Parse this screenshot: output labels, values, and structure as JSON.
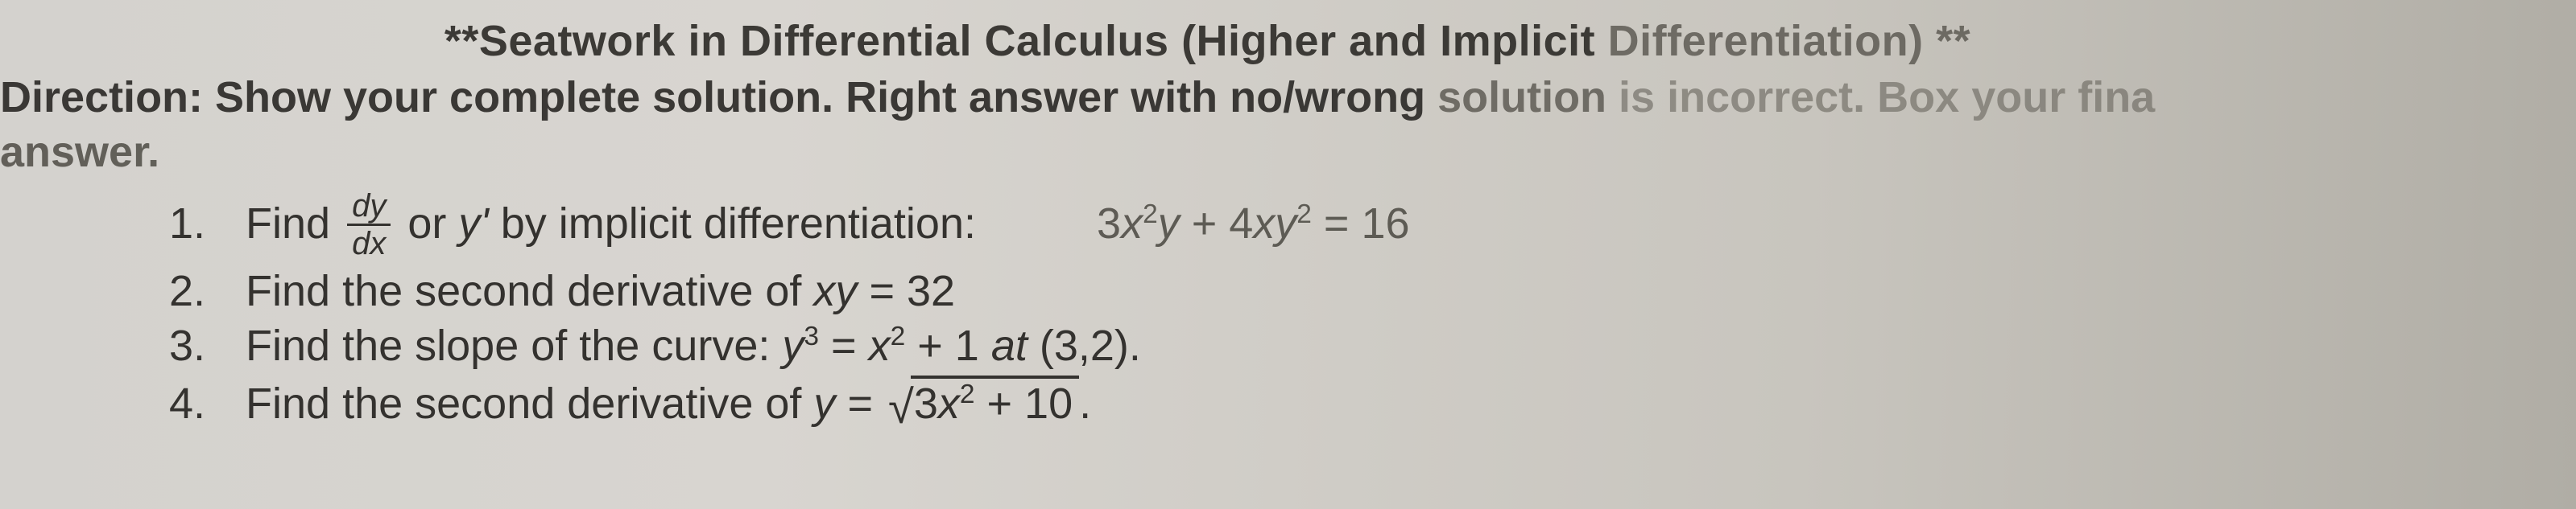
{
  "title": {
    "stars_left": "**",
    "main": "Seatwork in Differential Calculus (Higher and Implicit ",
    "faded_word": "Differentiation) ",
    "stars_right": "**"
  },
  "direction": {
    "label": "Direction:",
    "body_strong": "  Show your complete solution. Right answer with no/wrong ",
    "body_fade1": "solution ",
    "body_fade2": "is incorrect. Box your fina"
  },
  "answer_label": "answer.",
  "problems": {
    "p1": {
      "num": "1.",
      "lead": "Find ",
      "frac_top": "dy",
      "frac_bot": "dx",
      "mid": " or ",
      "yprime": "y'",
      "rest": " by implicit differentiation:",
      "eq_lhs_a": "3",
      "eq_lhs_b": "x",
      "eq_lhs_b_sup": "2",
      "eq_lhs_c": "y",
      "eq_lhs_d": " + 4",
      "eq_lhs_e": "xy",
      "eq_lhs_e_sup": "2",
      "eq_eq": " = 16"
    },
    "p2": {
      "num": "2.",
      "text": "Find the second derivative of ",
      "var": "xy",
      "eq": " = ",
      "val": " 32"
    },
    "p3": {
      "num": "3.",
      "text": "Find the slope of the curve: ",
      "y": "y",
      "y_sup": "3",
      "eq": " = ",
      "x": "x",
      "x_sup": "2",
      "plus": " + 1 ",
      "at": " at ",
      "point": "(3,2)."
    },
    "p4": {
      "num": "4.",
      "text": "Find the second derivative of ",
      "y": " y",
      "eq": " = ",
      "rad_a": "3",
      "rad_b": "x",
      "rad_b_sup": "2",
      "rad_c": " + 10",
      "period": "."
    }
  },
  "colors": {
    "text_main": "#3a3835",
    "text_faded": "#5a5750",
    "bg_left": "#d4d2ce",
    "bg_right": "#b0ada5"
  }
}
